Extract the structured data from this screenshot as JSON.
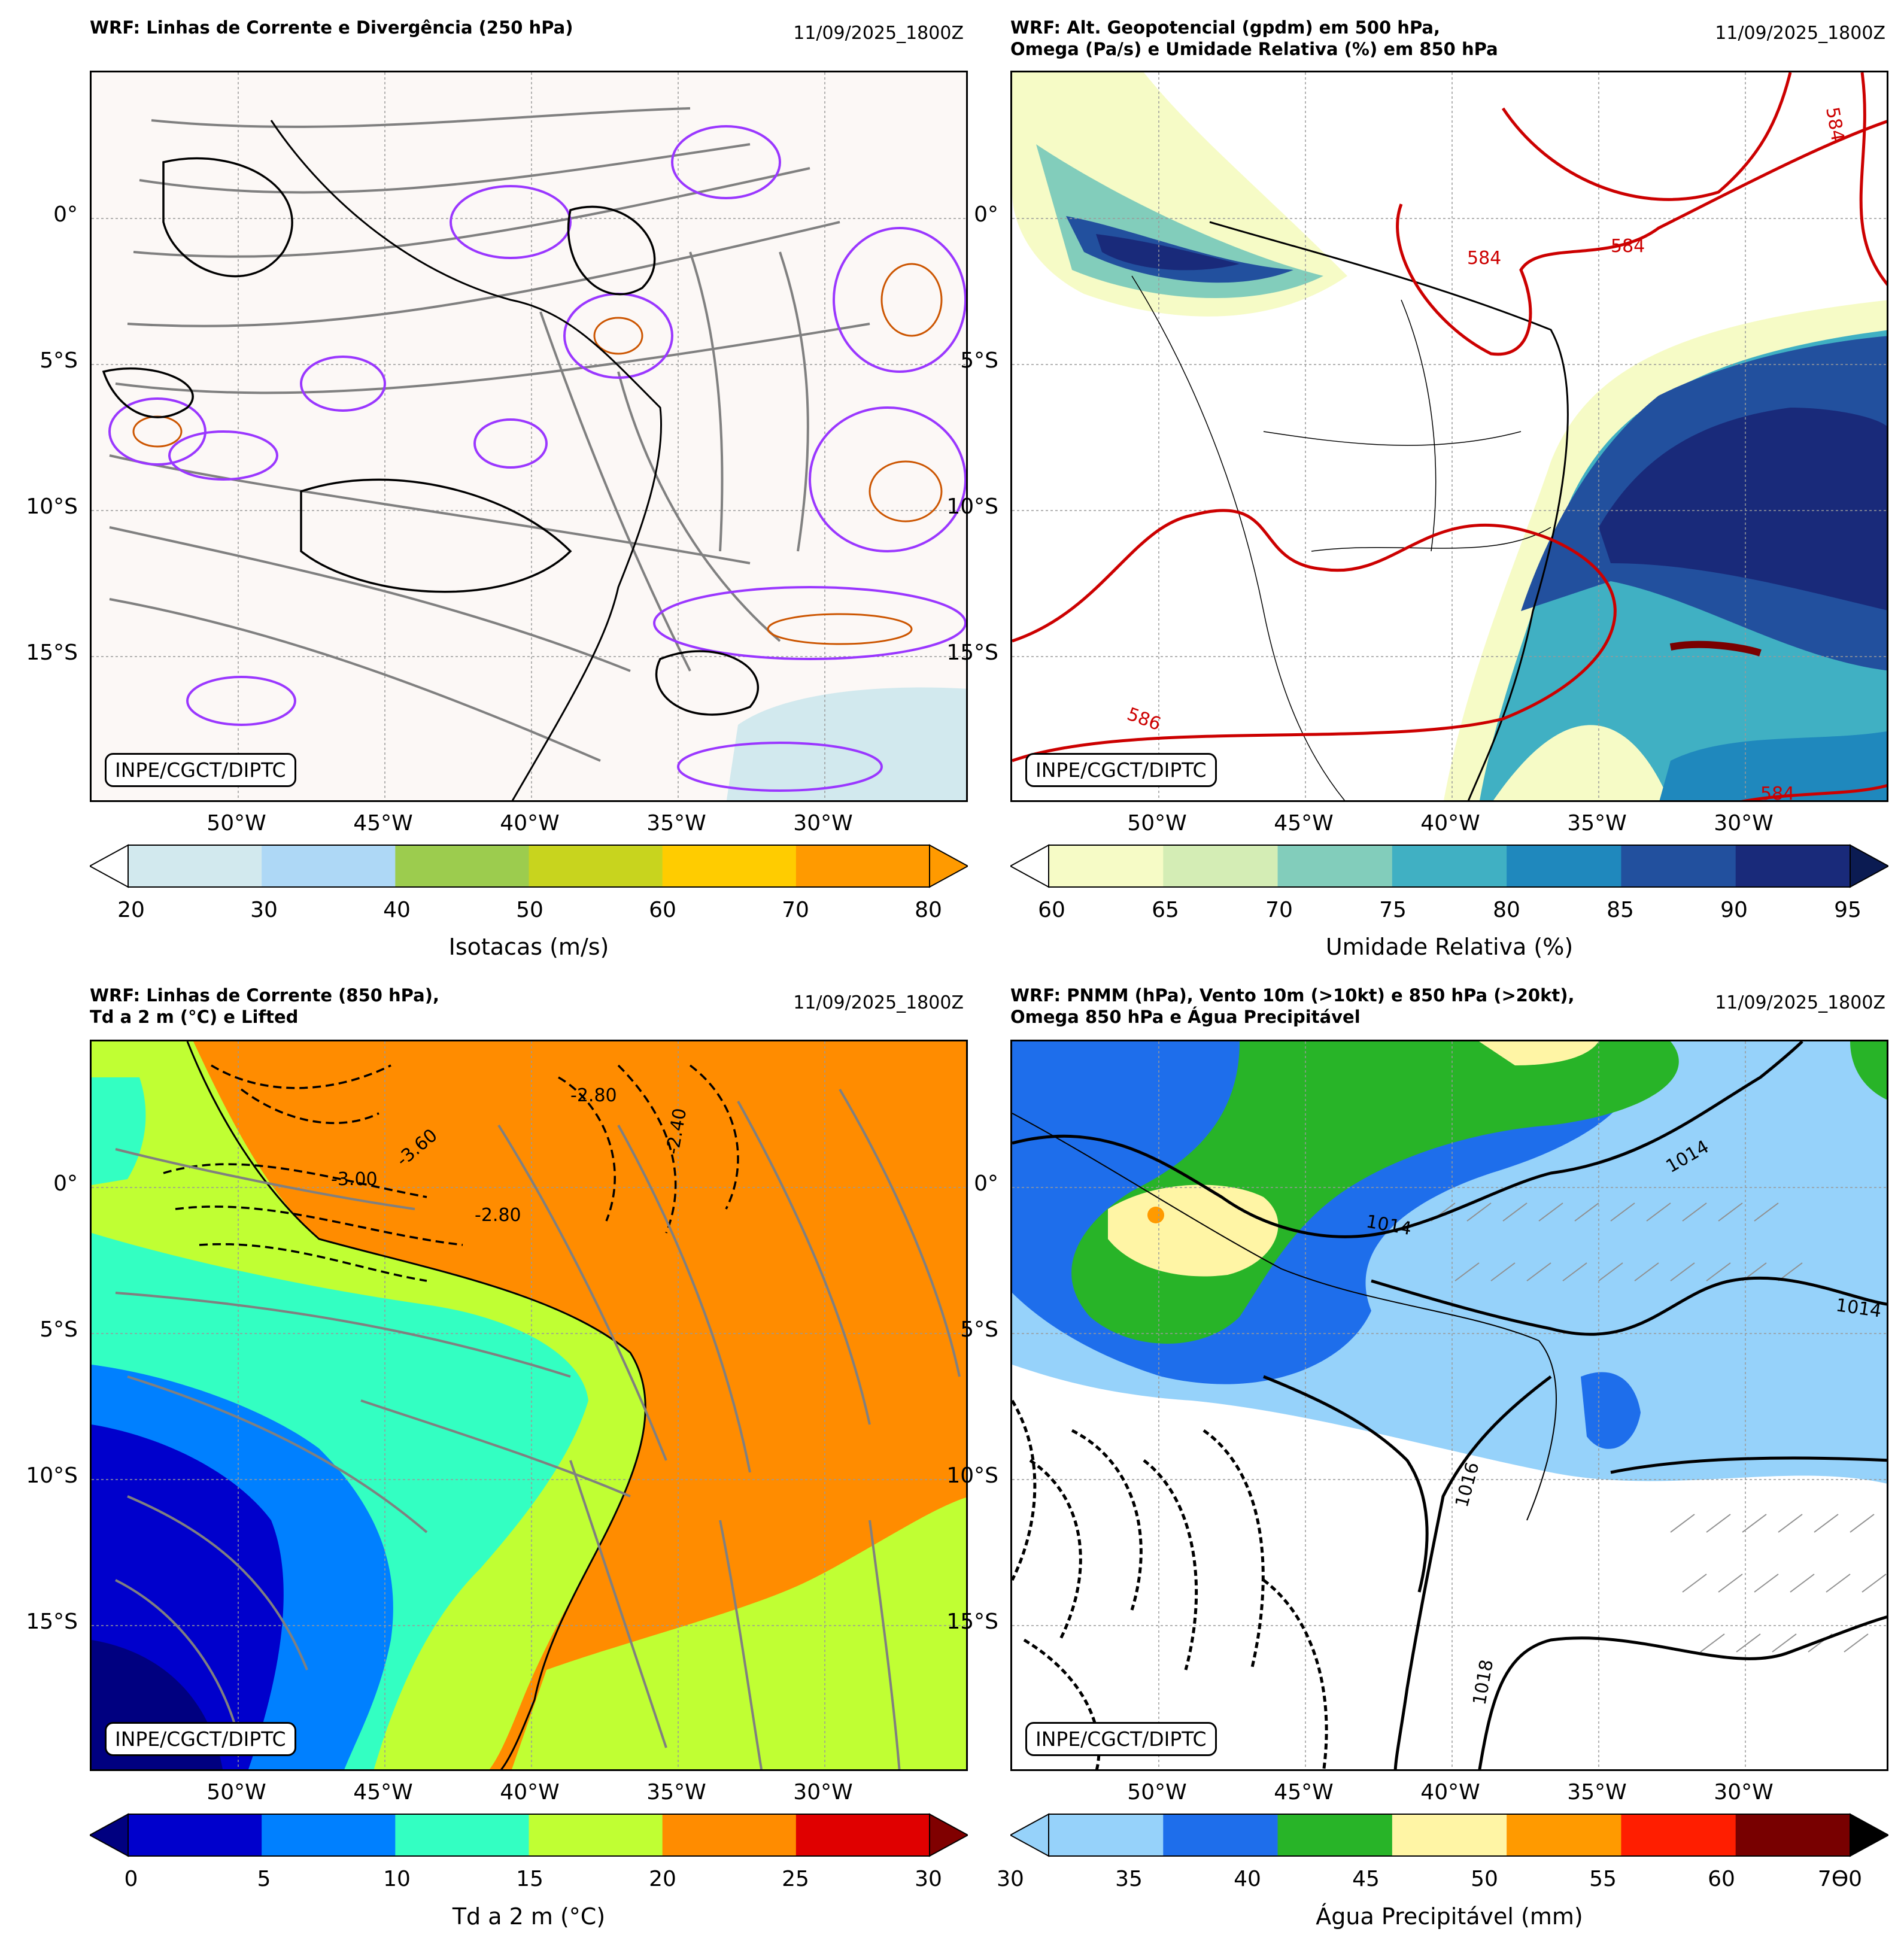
{
  "panels": [
    {
      "title": "WRF: Linhas de Corrente e Divergência (250 hPa)",
      "date": "11/09/2025_1800Z",
      "credit": "INPE/CGCT/DIPTC",
      "lat_ticks": [
        "0°",
        "5°S",
        "10°S",
        "15°S"
      ],
      "lon_ticks": [
        "50°W",
        "45°W",
        "40°W",
        "35°W",
        "30°W"
      ],
      "colorbar": {
        "label": "Isotacas (m/s)",
        "ticks": [
          "20",
          "30",
          "40",
          "50",
          "60",
          "70",
          "80"
        ],
        "colors": [
          "#d2e9ee",
          "#aed8f6",
          "#9ccc4e",
          "#c8d41e",
          "#ffcc00",
          "#ff9a00"
        ],
        "extend_min_color": "#ffffff",
        "extend_max_color": "#ff9a00"
      }
    },
    {
      "title": "WRF: Alt. Geopotencial (gpdm) em 500 hPa,\nOmega (Pa/s) e Umidade Relativa (%) em 850 hPa",
      "date": "11/09/2025_1800Z",
      "credit": "INPE/CGCT/DIPTC",
      "lat_ticks": [
        "0°",
        "5°S",
        "10°S",
        "15°S"
      ],
      "lon_ticks": [
        "50°W",
        "45°W",
        "40°W",
        "35°W",
        "30°W"
      ],
      "contour_labels": [
        "584",
        "584",
        "584",
        "586",
        "584"
      ],
      "colorbar": {
        "label": "Umidade Relativa (%)",
        "ticks": [
          "60",
          "65",
          "70",
          "75",
          "80",
          "85",
          "90",
          "95"
        ],
        "colors": [
          "#f6fbc6",
          "#d4edb5",
          "#82cdbb",
          "#40b0c3",
          "#1f88bd",
          "#22509e",
          "#192a7a"
        ],
        "extend_min_color": "#ffffff",
        "extend_max_color": "#0b1b52"
      }
    },
    {
      "title": "WRF: Linhas de Corrente (850 hPa),\nTd a 2 m (°C) e Lifted",
      "date": "11/09/2025_1800Z",
      "credit": "INPE/CGCT/DIPTC",
      "lat_ticks": [
        "0°",
        "5°S",
        "10°S",
        "15°S"
      ],
      "lon_ticks": [
        "50°W",
        "45°W",
        "40°W",
        "35°W",
        "30°W"
      ],
      "contour_labels": [
        "-2.80",
        "-3.60",
        "-2.80",
        "-2.40",
        "-3.00"
      ],
      "colorbar": {
        "label": "Td a 2 m (°C)",
        "ticks": [
          "0",
          "5",
          "10",
          "15",
          "20",
          "25",
          "30"
        ],
        "colors": [
          "#0000cc",
          "#0080ff",
          "#33ffc2",
          "#c0ff33",
          "#ff8c00",
          "#e00000"
        ],
        "extend_min_color": "#000080",
        "extend_max_color": "#800000"
      }
    },
    {
      "title": "WRF: PNMM (hPa), Vento 10m (>10kt) e 850 hPa (>20kt),\nOmega 850 hPa e Água Precipitável",
      "date": "11/09/2025_1800Z",
      "credit": "INPE/CGCT/DIPTC",
      "lat_ticks": [
        "0°",
        "5°S",
        "10°S",
        "15°S"
      ],
      "lon_ticks": [
        "50°W",
        "45°W",
        "40°W",
        "35°W",
        "30°W"
      ],
      "contour_labels": [
        "1014",
        "1014",
        "1014",
        "1016",
        "1018"
      ],
      "colorbar": {
        "label": "Água Precipitável (mm)",
        "ticks": [
          "30",
          "35",
          "40",
          "45",
          "50",
          "55",
          "60",
          "7Ѳ0"
        ],
        "colors": [
          "#96d2fa",
          "#1e6eeb",
          "#28b428",
          "#fff5a5",
          "#ff9a00",
          "#ff1e00",
          "#780000"
        ],
        "extend_min_color": "#96d2fa",
        "extend_max_color": "#000000"
      }
    }
  ]
}
